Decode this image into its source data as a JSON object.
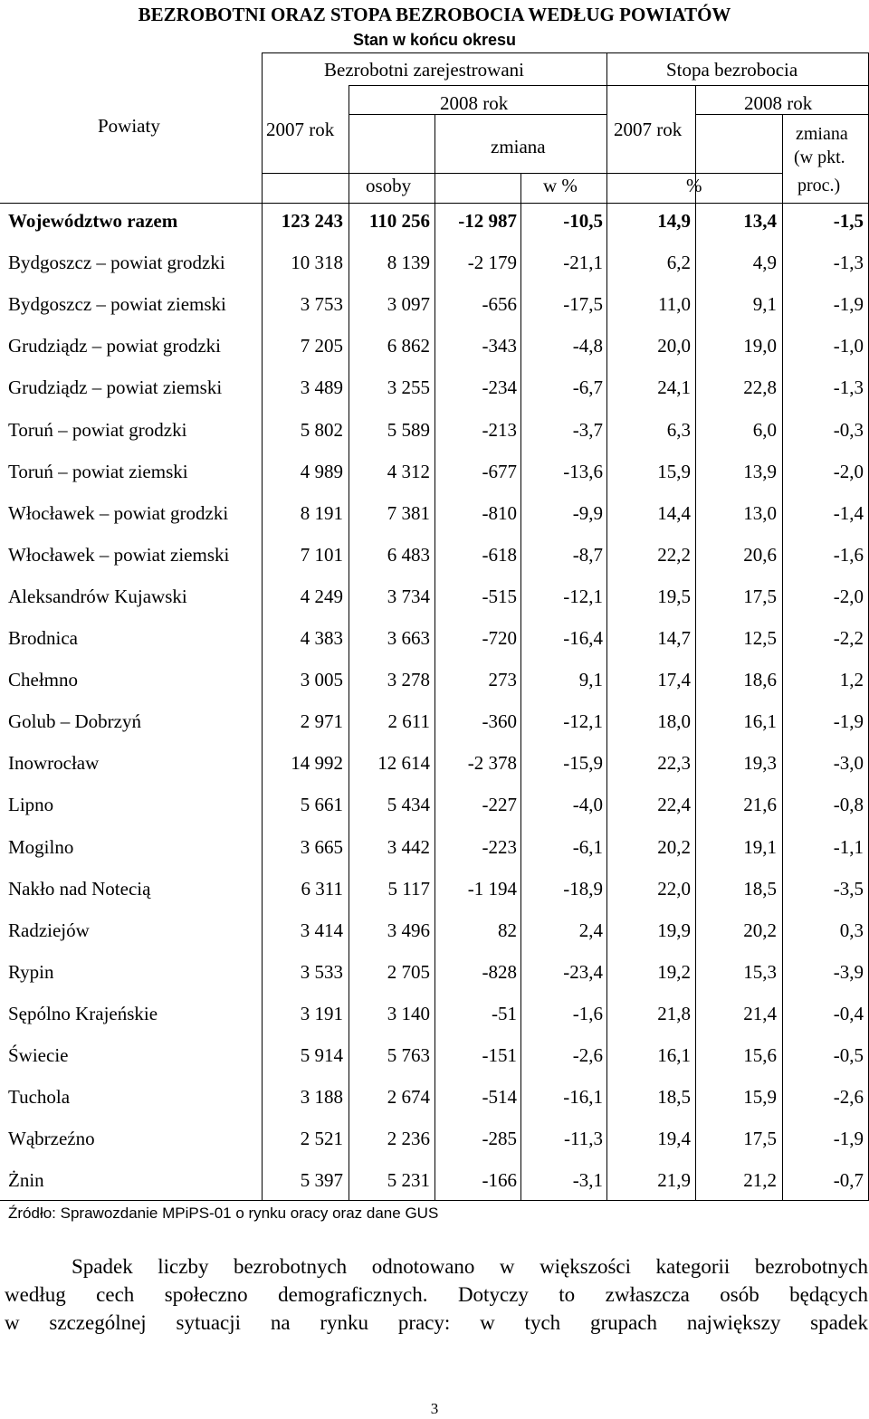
{
  "title": "BEZROBOTNI ORAZ STOPA BEZROBOCIA WEDŁUG POWIATÓW",
  "subtitle": "Stan w końcu okresu",
  "header": {
    "powiaty": "Powiaty",
    "bezrobotni": "Bezrobotni zarejestrowani",
    "stopa": "Stopa bezrobocia",
    "y2007_a": "2007 rok",
    "y2008_a": "2008 rok",
    "zmiana_a": "zmiana",
    "y2007_b": "2007 rok",
    "y2008_b": "2008 rok",
    "zmiana_b_1": "zmiana",
    "zmiana_b_2": "(w pkt.",
    "zmiana_b_3": "proc.)",
    "osoby": "osoby",
    "w_proc": "w %",
    "proc": "%"
  },
  "rows": [
    {
      "name": "Województwo razem",
      "a": "123 243",
      "b": "110 256",
      "c": "-12 987",
      "d": "-10,5",
      "e": "14,9",
      "f": "13,4",
      "g": "-1,5",
      "bold": true
    },
    {
      "name": "Bydgoszcz – powiat grodzki",
      "a": "10 318",
      "b": "8 139",
      "c": "-2 179",
      "d": "-21,1",
      "e": "6,2",
      "f": "4,9",
      "g": "-1,3"
    },
    {
      "name": "Bydgoszcz – powiat ziemski",
      "a": "3 753",
      "b": "3 097",
      "c": "-656",
      "d": "-17,5",
      "e": "11,0",
      "f": "9,1",
      "g": "-1,9"
    },
    {
      "name": "Grudziądz – powiat grodzki",
      "a": "7 205",
      "b": "6 862",
      "c": "-343",
      "d": "-4,8",
      "e": "20,0",
      "f": "19,0",
      "g": "-1,0"
    },
    {
      "name": "Grudziądz – powiat ziemski",
      "a": "3 489",
      "b": "3 255",
      "c": "-234",
      "d": "-6,7",
      "e": "24,1",
      "f": "22,8",
      "g": "-1,3"
    },
    {
      "name": "Toruń – powiat grodzki",
      "a": "5 802",
      "b": "5 589",
      "c": "-213",
      "d": "-3,7",
      "e": "6,3",
      "f": "6,0",
      "g": "-0,3"
    },
    {
      "name": "Toruń – powiat ziemski",
      "a": "4 989",
      "b": "4 312",
      "c": "-677",
      "d": "-13,6",
      "e": "15,9",
      "f": "13,9",
      "g": "-2,0"
    },
    {
      "name": "Włocławek – powiat grodzki",
      "a": "8 191",
      "b": "7 381",
      "c": "-810",
      "d": "-9,9",
      "e": "14,4",
      "f": "13,0",
      "g": "-1,4"
    },
    {
      "name": "Włocławek – powiat ziemski",
      "a": "7 101",
      "b": "6 483",
      "c": "-618",
      "d": "-8,7",
      "e": "22,2",
      "f": "20,6",
      "g": "-1,6"
    },
    {
      "name": "Aleksandrów Kujawski",
      "a": "4 249",
      "b": "3 734",
      "c": "-515",
      "d": "-12,1",
      "e": "19,5",
      "f": "17,5",
      "g": "-2,0"
    },
    {
      "name": "Brodnica",
      "a": "4 383",
      "b": "3 663",
      "c": "-720",
      "d": "-16,4",
      "e": "14,7",
      "f": "12,5",
      "g": "-2,2"
    },
    {
      "name": "Chełmno",
      "a": "3 005",
      "b": "3 278",
      "c": "273",
      "d": "9,1",
      "e": "17,4",
      "f": "18,6",
      "g": "1,2"
    },
    {
      "name": "Golub – Dobrzyń",
      "a": "2 971",
      "b": "2 611",
      "c": "-360",
      "d": "-12,1",
      "e": "18,0",
      "f": "16,1",
      "g": "-1,9"
    },
    {
      "name": "Inowrocław",
      "a": "14 992",
      "b": "12 614",
      "c": "-2 378",
      "d": "-15,9",
      "e": "22,3",
      "f": "19,3",
      "g": "-3,0"
    },
    {
      "name": "Lipno",
      "a": "5 661",
      "b": "5 434",
      "c": "-227",
      "d": "-4,0",
      "e": "22,4",
      "f": "21,6",
      "g": "-0,8"
    },
    {
      "name": "Mogilno",
      "a": "3 665",
      "b": "3 442",
      "c": "-223",
      "d": "-6,1",
      "e": "20,2",
      "f": "19,1",
      "g": "-1,1"
    },
    {
      "name": "Nakło nad Notecią",
      "a": "6 311",
      "b": "5 117",
      "c": "-1 194",
      "d": "-18,9",
      "e": "22,0",
      "f": "18,5",
      "g": "-3,5"
    },
    {
      "name": "Radziejów",
      "a": "3 414",
      "b": "3 496",
      "c": "82",
      "d": "2,4",
      "e": "19,9",
      "f": "20,2",
      "g": "0,3"
    },
    {
      "name": "Rypin",
      "a": "3 533",
      "b": "2 705",
      "c": "-828",
      "d": "-23,4",
      "e": "19,2",
      "f": "15,3",
      "g": "-3,9"
    },
    {
      "name": "Sępólno Krajeńskie",
      "a": "3 191",
      "b": "3 140",
      "c": "-51",
      "d": "-1,6",
      "e": "21,8",
      "f": "21,4",
      "g": "-0,4"
    },
    {
      "name": "Świecie",
      "a": "5 914",
      "b": "5 763",
      "c": "-151",
      "d": "-2,6",
      "e": "16,1",
      "f": "15,6",
      "g": "-0,5"
    },
    {
      "name": "Tuchola",
      "a": "3 188",
      "b": "2 674",
      "c": "-514",
      "d": "-16,1",
      "e": "18,5",
      "f": "15,9",
      "g": "-2,6"
    },
    {
      "name": "Wąbrzeźno",
      "a": "2 521",
      "b": "2 236",
      "c": "-285",
      "d": "-11,3",
      "e": "19,4",
      "f": "17,5",
      "g": "-1,9"
    },
    {
      "name": "Żnin",
      "a": "5 397",
      "b": "5 231",
      "c": "-166",
      "d": "-3,1",
      "e": "21,9",
      "f": "21,2",
      "g": "-0,7"
    }
  ],
  "source": "Źródło: Sprawozdanie MPiPS-01 o rynku oracy oraz dane GUS",
  "paragraph": {
    "line1": "Spadek liczby bezrobotnych odnotowano w większości kategorii bezrobotnych",
    "line2": "według cech społeczno demograficznych. Dotyczy to zwłaszcza osób będących",
    "line3": "w szczególnej sytuacji na rynku pracy: w tych grupach największy spadek"
  },
  "page_number": "3"
}
